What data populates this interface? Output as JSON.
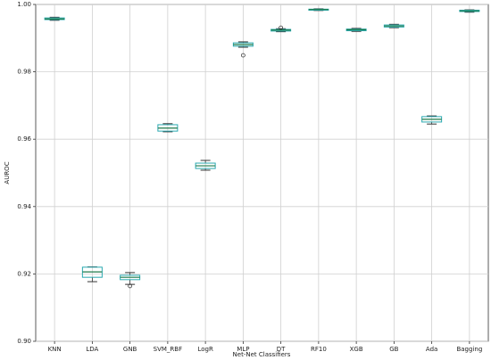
{
  "chart_data": {
    "type": "box",
    "xlabel": "Net-Net Classifiers",
    "ylabel": "AUROC",
    "categories": [
      "KNN",
      "LDA",
      "GNB",
      "SVM_RBF",
      "LogR",
      "MLP",
      "DT",
      "RF10",
      "XGB",
      "GB",
      "Ada",
      "Bagging"
    ],
    "whislo": [
      0.9953,
      0.9177,
      0.9169,
      0.9622,
      0.9508,
      0.9873,
      0.9919,
      0.9982,
      0.992,
      0.9931,
      0.9645,
      0.9977
    ],
    "q1": [
      0.9955,
      0.919,
      0.9183,
      0.9624,
      0.9513,
      0.9876,
      0.9921,
      0.9983,
      0.9922,
      0.9933,
      0.9651,
      0.9979
    ],
    "med": [
      0.9957,
      0.9206,
      0.919,
      0.9633,
      0.9521,
      0.9881,
      0.9924,
      0.9985,
      0.9925,
      0.9936,
      0.9659,
      0.9981
    ],
    "q3": [
      0.996,
      0.922,
      0.9196,
      0.9643,
      0.9529,
      0.9886,
      0.9926,
      0.9986,
      0.9927,
      0.9939,
      0.9667,
      0.9983
    ],
    "whishi": [
      0.9962,
      0.9221,
      0.9204,
      0.9646,
      0.9537,
      0.9889,
      0.9928,
      0.9987,
      0.9929,
      0.9941,
      0.9669,
      0.9984
    ],
    "fliers": [
      [],
      [],
      [
        0.9164
      ],
      [],
      [],
      [
        0.9849
      ],
      [
        0.9931
      ],
      [],
      [],
      [],
      [],
      []
    ],
    "ylim": [
      0.9,
      1.0
    ],
    "yticks": [
      {
        "value": 0.9,
        "label": "0.90"
      },
      0.92,
      0.94,
      0.96,
      0.98,
      {
        "value": 1.0,
        "label": "1.00"
      }
    ],
    "grid": true,
    "box_color": "#2aa9b0",
    "median_color": "#1e7a4a",
    "whisker_color": "#333333"
  }
}
